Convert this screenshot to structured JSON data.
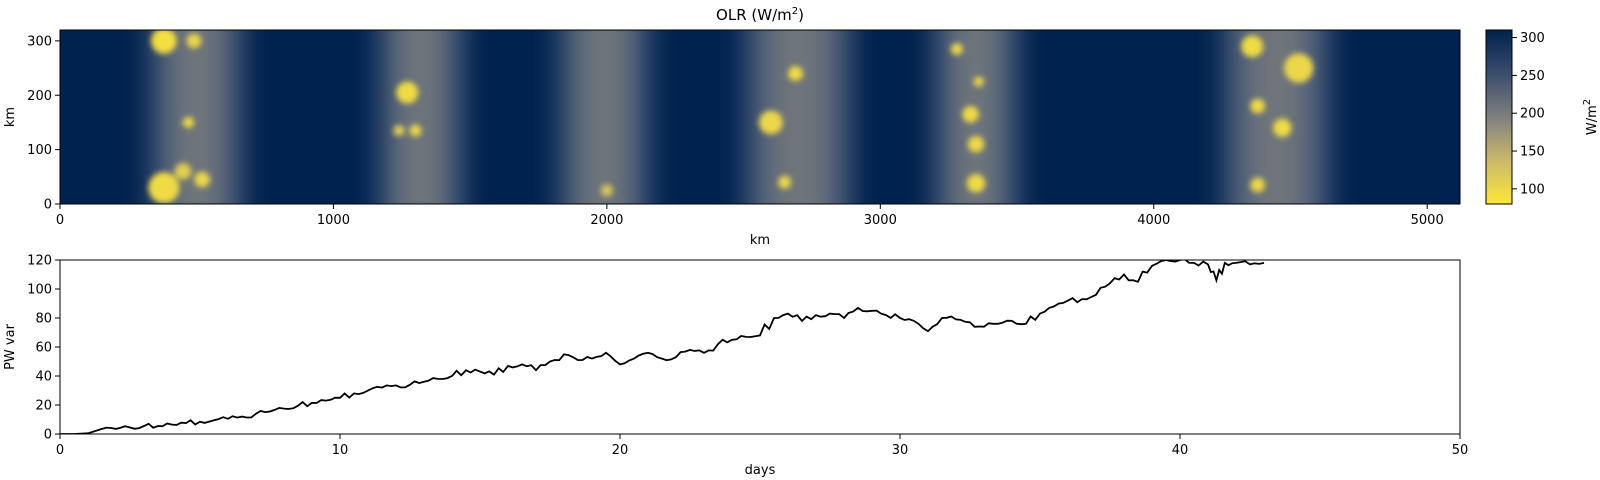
{
  "chart_data": [
    {
      "type": "heatmap",
      "title": "OLR (W/m",
      "title_superscript": "2",
      "title_suffix": ")",
      "xlabel": "km",
      "ylabel": "km",
      "xlim": [
        0,
        5120
      ],
      "ylim": [
        0,
        320
      ],
      "xticks": [
        0,
        1000,
        2000,
        3000,
        4000,
        5000
      ],
      "yticks": [
        0,
        100,
        200,
        300
      ],
      "colormap": "cividis_r",
      "colors": {
        "low": "#fde737",
        "mid": "#7f7f7f",
        "high": "#00224e"
      },
      "colorbar": {
        "label": "W/m",
        "label_superscript": "2",
        "range": [
          80,
          310
        ],
        "ticks": [
          100,
          150,
          200,
          250,
          300
        ]
      },
      "convective_bands_km": [
        {
          "center": 500,
          "width": 330
        },
        {
          "center": 1320,
          "width": 300
        },
        {
          "center": 1990,
          "width": 320
        },
        {
          "center": 2700,
          "width": 380
        },
        {
          "center": 3350,
          "width": 300
        },
        {
          "center": 4450,
          "width": 380
        }
      ],
      "cold_cloud_cells": [
        {
          "x": 380,
          "y": 300,
          "r": 24,
          "v": 90
        },
        {
          "x": 490,
          "y": 300,
          "r": 12,
          "v": 100
        },
        {
          "x": 470,
          "y": 150,
          "r": 8,
          "v": 95
        },
        {
          "x": 450,
          "y": 60,
          "r": 14,
          "v": 110
        },
        {
          "x": 380,
          "y": 30,
          "r": 30,
          "v": 95
        },
        {
          "x": 520,
          "y": 45,
          "r": 13,
          "v": 100
        },
        {
          "x": 1270,
          "y": 205,
          "r": 20,
          "v": 95
        },
        {
          "x": 1240,
          "y": 135,
          "r": 8,
          "v": 110
        },
        {
          "x": 1300,
          "y": 135,
          "r": 9,
          "v": 100
        },
        {
          "x": 2000,
          "y": 25,
          "r": 9,
          "v": 120
        },
        {
          "x": 2600,
          "y": 150,
          "r": 22,
          "v": 100
        },
        {
          "x": 2690,
          "y": 240,
          "r": 12,
          "v": 95
        },
        {
          "x": 2650,
          "y": 40,
          "r": 10,
          "v": 100
        },
        {
          "x": 3280,
          "y": 285,
          "r": 9,
          "v": 100
        },
        {
          "x": 3360,
          "y": 225,
          "r": 7,
          "v": 100
        },
        {
          "x": 3330,
          "y": 165,
          "r": 14,
          "v": 95
        },
        {
          "x": 3350,
          "y": 110,
          "r": 14,
          "v": 100
        },
        {
          "x": 3350,
          "y": 38,
          "r": 16,
          "v": 95
        },
        {
          "x": 4360,
          "y": 290,
          "r": 20,
          "v": 95
        },
        {
          "x": 4530,
          "y": 250,
          "r": 28,
          "v": 100
        },
        {
          "x": 4380,
          "y": 180,
          "r": 12,
          "v": 95
        },
        {
          "x": 4470,
          "y": 140,
          "r": 16,
          "v": 95
        },
        {
          "x": 4380,
          "y": 35,
          "r": 12,
          "v": 100
        }
      ]
    },
    {
      "type": "line",
      "xlabel": "days",
      "ylabel": "PW var",
      "xlim": [
        0,
        50
      ],
      "ylim": [
        0,
        120
      ],
      "xticks": [
        0,
        10,
        20,
        30,
        40,
        50
      ],
      "yticks": [
        0,
        20,
        40,
        60,
        80,
        100,
        120
      ],
      "series": [
        {
          "color": "#000000",
          "x": [
            0,
            0.5,
            1.0,
            1.5,
            2.0,
            2.5,
            3.0,
            3.5,
            4.0,
            4.5,
            5.0,
            5.5,
            6.0,
            6.5,
            7.0,
            7.5,
            8.0,
            8.5,
            9.0,
            9.5,
            10.0,
            10.5,
            11.0,
            11.5,
            12.0,
            12.5,
            13.0,
            13.5,
            14.0,
            14.5,
            15.0,
            15.5,
            16.0,
            16.5,
            17.0,
            17.5,
            18.0,
            18.5,
            19.0,
            19.5,
            20.0,
            20.5,
            21.0,
            21.5,
            22.0,
            22.5,
            23.0,
            23.5,
            24.0,
            24.5,
            25.0,
            25.5,
            26.0,
            26.5,
            27.0,
            27.5,
            28.0,
            28.5,
            29.0,
            29.5,
            30.0,
            30.5,
            31.0,
            31.5,
            32.0,
            32.5,
            33.0,
            33.5,
            34.0,
            34.5,
            35.0,
            35.5,
            36.0,
            36.5,
            37.0,
            37.5,
            38.0,
            38.5,
            39.0,
            39.5,
            40.0,
            40.5,
            41.0,
            41.3,
            41.6,
            42.0,
            42.5,
            43.0
          ],
          "y": [
            0,
            0,
            0.5,
            3.5,
            3.5,
            4.5,
            5.5,
            5.5,
            6.5,
            7.5,
            8.5,
            9.5,
            10.5,
            12,
            14,
            15.5,
            17.5,
            19.5,
            21.5,
            23,
            25,
            28,
            30,
            32,
            33.5,
            34,
            36,
            38,
            40,
            44,
            43,
            41,
            47,
            48,
            44,
            50,
            55,
            51,
            52,
            56,
            48,
            52,
            56,
            52,
            53,
            58,
            56,
            62,
            65,
            67,
            68,
            80,
            83,
            78,
            82,
            83,
            80,
            87,
            85,
            82,
            80,
            78,
            71,
            80,
            79,
            77,
            74,
            76,
            78,
            76,
            83,
            88,
            92,
            93,
            96,
            104,
            110,
            105,
            116,
            120,
            120,
            118,
            117,
            106,
            118,
            118,
            117,
            118
          ]
        }
      ]
    }
  ]
}
